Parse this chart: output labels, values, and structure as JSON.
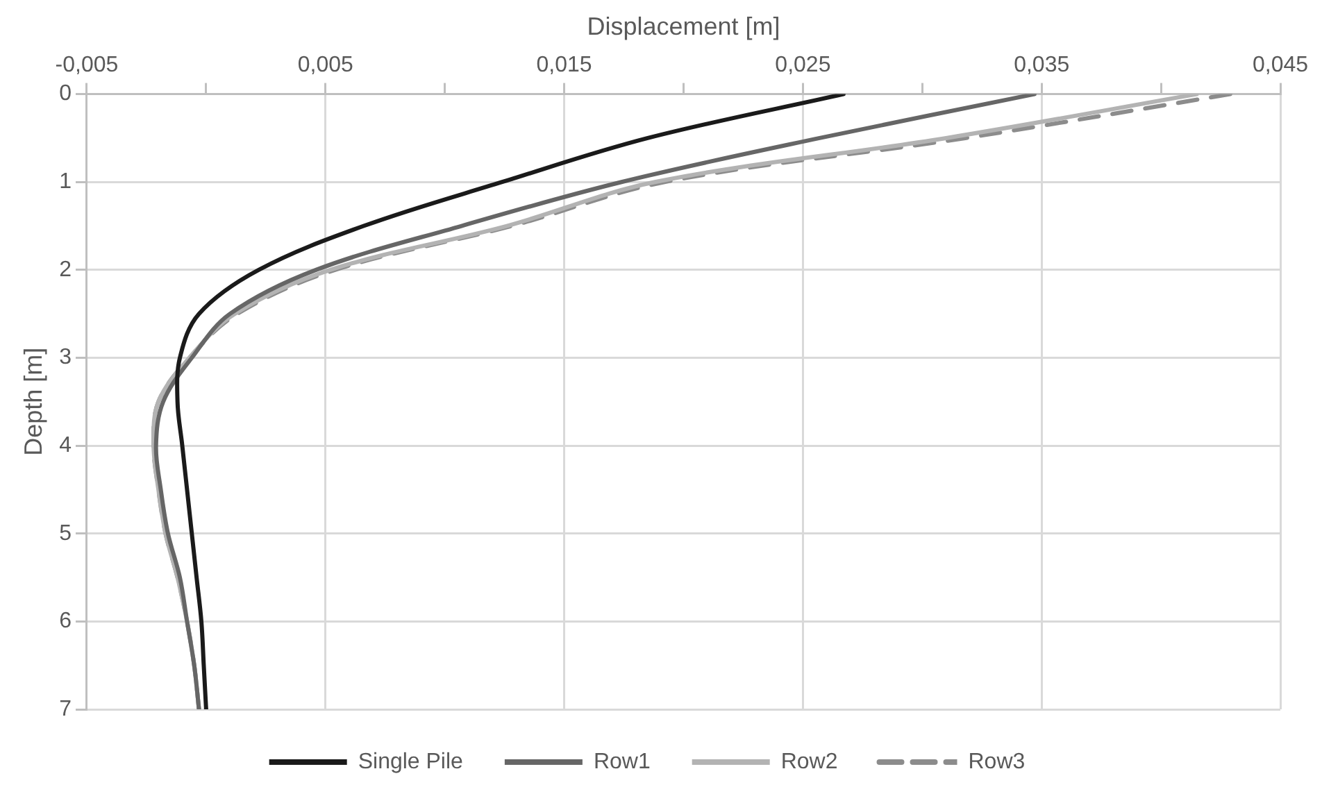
{
  "chart_data": {
    "type": "line",
    "xlabel": "Displacement [m]",
    "ylabel": "Depth [m]",
    "xlim": [
      -0.005,
      0.045
    ],
    "xticks": [
      {
        "value": -0.005,
        "label": "-0,005"
      },
      {
        "value": 0,
        "label": null
      },
      {
        "value": 0.005,
        "label": "0,005"
      },
      {
        "value": 0.01,
        "label": null
      },
      {
        "value": 0.015,
        "label": "0,015"
      },
      {
        "value": 0.02,
        "label": null
      },
      {
        "value": 0.025,
        "label": "0,025"
      },
      {
        "value": 0.03,
        "label": null
      },
      {
        "value": 0.035,
        "label": "0,035"
      },
      {
        "value": 0.04,
        "label": null
      },
      {
        "value": 0.045,
        "label": "0,045"
      }
    ],
    "ylim": [
      7,
      0
    ],
    "yticks": [
      0,
      1,
      2,
      3,
      4,
      5,
      6,
      7
    ],
    "grid": true,
    "legend": "bottom",
    "marker": "none",
    "series": [
      {
        "name": "Single Pile",
        "color": "#1a1a1a",
        "line_style": "solid",
        "x": [
          0.0267,
          0.0185,
          0.0124,
          0.0066,
          0.0022,
          -0.0003,
          -0.0011,
          -0.0012,
          -0.001,
          -0.0008,
          -0.0006,
          -0.0004,
          -0.0002,
          -0.0001,
          0
        ],
        "values": [
          0,
          0.5,
          1,
          1.5,
          2,
          2.5,
          3,
          3.5,
          4,
          4.5,
          5,
          5.5,
          6,
          6.5,
          7
        ]
      },
      {
        "name": "Row1",
        "color": "#666666",
        "line_style": "solid",
        "x": [
          0.0347,
          0.0257,
          0.0174,
          0.0107,
          0.0046,
          0.001,
          -0.0006,
          -0.0018,
          -0.0021,
          -0.0019,
          -0.0016,
          -0.0011,
          -0.0008,
          -0.0005,
          -0.0003
        ],
        "values": [
          0,
          0.5,
          1,
          1.5,
          2,
          2.5,
          3,
          3.5,
          4,
          4.5,
          5,
          5.5,
          6,
          6.5,
          7
        ]
      },
      {
        "name": "Row2",
        "color": "#b3b3b3",
        "line_style": "solid",
        "x": [
          0.0415,
          0.031,
          0.0188,
          0.0126,
          0.0052,
          0.0012,
          -0.0007,
          -0.002,
          -0.0022,
          -0.002,
          -0.0017,
          -0.0012,
          -0.0008,
          -0.0005,
          -0.0003
        ],
        "values": [
          0,
          0.5,
          1,
          1.5,
          2,
          2.5,
          3,
          3.5,
          4,
          4.5,
          5,
          5.5,
          6,
          6.5,
          7
        ]
      },
      {
        "name": "Row3",
        "color": "#8c8c8c",
        "line_style": "dashed",
        "x": [
          0.0429,
          0.0318,
          0.0192,
          0.0128,
          0.0054,
          0.0013,
          -0.0007,
          -0.002,
          -0.0022,
          -0.002,
          -0.0017,
          -0.0012,
          -0.0008,
          -0.0005,
          -0.0003
        ],
        "values": [
          0,
          0.5,
          1,
          1.5,
          2,
          2.5,
          3,
          3.5,
          4,
          4.5,
          5,
          5.5,
          6,
          6.5,
          7
        ]
      }
    ]
  }
}
